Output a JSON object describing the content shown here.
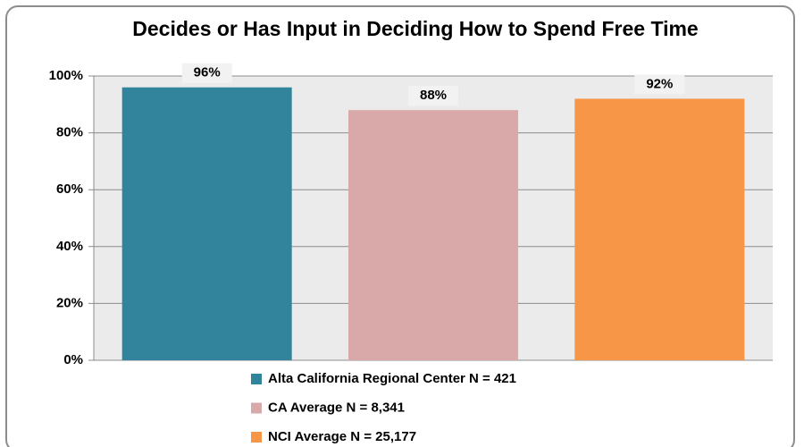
{
  "chart_data": {
    "type": "bar",
    "title": "Decides or Has Input in Deciding How to Spend Free Time",
    "series": [
      {
        "name": "Alta California Regional Center N = 421",
        "color": "#31849b",
        "values": [
          96
        ],
        "value_labels": [
          "96%"
        ]
      },
      {
        "name": "CA Average N = 8,341",
        "color": "#d9a9a9",
        "values": [
          88
        ],
        "value_labels": [
          "88%"
        ]
      },
      {
        "name": "NCI Average N = 25,177",
        "color": "#f79646",
        "values": [
          92
        ],
        "value_labels": [
          "92%"
        ]
      }
    ],
    "ylim": [
      0,
      100
    ],
    "yticks": [
      {
        "value": 0,
        "label": "0%"
      },
      {
        "value": 20,
        "label": "20%"
      },
      {
        "value": 40,
        "label": "40%"
      },
      {
        "value": 60,
        "label": "60%"
      },
      {
        "value": 80,
        "label": "80%"
      },
      {
        "value": 100,
        "label": "100%"
      }
    ],
    "grid": true,
    "legend": "bottom"
  }
}
